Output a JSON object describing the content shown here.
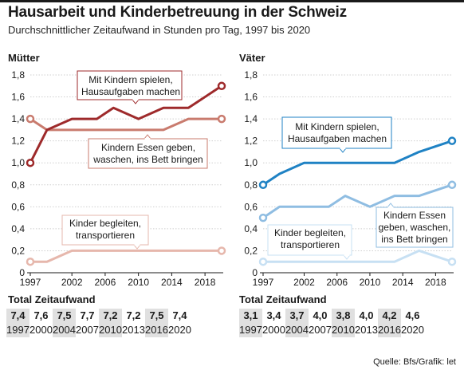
{
  "title": "Hausarbeit und Kinderbetreuung in der Schweiz",
  "subtitle": "Durchschnittlicher Zeitaufwand in Stunden pro Tag, 1997 bis 2020",
  "source": "Quelle: Bfs/Grafik: let",
  "totals_label": "Total Zeitaufwand",
  "colors": {
    "mothers_play": "#9e2a2b",
    "mothers_eat": "#c97b6e",
    "mothers_transport": "#e6b7ac",
    "fathers_play": "#1f82c4",
    "fathers_eat": "#8fbde2",
    "fathers_transport": "#c7e0f3"
  },
  "chart_data": [
    {
      "type": "line",
      "title": "Mütter",
      "x": [
        1997,
        1999,
        2002,
        2005,
        2007,
        2010,
        2013,
        2016,
        2020
      ],
      "x_ticks": [
        "1997",
        "2002",
        "2006",
        "2010",
        "2014",
        "2018"
      ],
      "y_ticks": [
        "0",
        "0,2",
        "0,4",
        "0,6",
        "0,8",
        "1,0",
        "1,2",
        "1,4",
        "1,6",
        "1,8"
      ],
      "ylim": [
        0,
        1.8
      ],
      "series": [
        {
          "name": "Mit Kindern spielen, Hausaufgaben machen",
          "values": [
            1.0,
            1.3,
            1.4,
            1.4,
            1.5,
            1.4,
            1.5,
            1.5,
            1.7
          ],
          "color": "#9e2a2b"
        },
        {
          "name": "Kindern Essen geben, waschen, ins Bett bringen",
          "values": [
            1.4,
            1.3,
            1.3,
            1.3,
            1.3,
            1.3,
            1.3,
            1.4,
            1.4
          ],
          "color": "#c97b6e"
        },
        {
          "name": "Kinder begleiten, transportieren",
          "values": [
            0.1,
            0.1,
            0.2,
            0.2,
            0.2,
            0.2,
            0.2,
            0.2,
            0.2
          ],
          "color": "#e6b7ac"
        }
      ],
      "annotations": [
        {
          "lines": [
            "Mit Kindern spielen,",
            "Hausaufgaben machen"
          ]
        },
        {
          "lines": [
            "Kindern Essen geben,",
            "waschen, ins Bett bringen"
          ]
        },
        {
          "lines": [
            "Kinder begleiten,",
            "transportieren"
          ]
        }
      ],
      "totals": [
        {
          "value": "7,4",
          "year": "1997",
          "shaded": true
        },
        {
          "value": "7,6",
          "year": "2000",
          "shaded": false
        },
        {
          "value": "7,5",
          "year": "2004",
          "shaded": true
        },
        {
          "value": "7,7",
          "year": "2007",
          "shaded": false
        },
        {
          "value": "7,2",
          "year": "2010",
          "shaded": true
        },
        {
          "value": "7,2",
          "year": "2013",
          "shaded": false
        },
        {
          "value": "7,5",
          "year": "2016",
          "shaded": true
        },
        {
          "value": "7,4",
          "year": "2020",
          "shaded": false
        }
      ]
    },
    {
      "type": "line",
      "title": "Väter",
      "x": [
        1997,
        1999,
        2002,
        2005,
        2007,
        2010,
        2013,
        2016,
        2020
      ],
      "x_ticks": [
        "1997",
        "2002",
        "2006",
        "2010",
        "2014",
        "2018"
      ],
      "y_ticks": [
        "0",
        "0,2",
        "0,4",
        "0,6",
        "0,8",
        "1,0",
        "1,2",
        "1,4",
        "1,6",
        "1,8"
      ],
      "ylim": [
        0,
        1.8
      ],
      "series": [
        {
          "name": "Mit Kindern spielen, Hausaufgaben machen",
          "values": [
            0.8,
            0.9,
            1.0,
            1.0,
            1.0,
            1.0,
            1.0,
            1.1,
            1.2
          ],
          "color": "#1f82c4"
        },
        {
          "name": "Kindern Essen geben, waschen, ins Bett bringen",
          "values": [
            0.5,
            0.6,
            0.6,
            0.6,
            0.7,
            0.6,
            0.7,
            0.7,
            0.8
          ],
          "color": "#8fbde2"
        },
        {
          "name": "Kinder begleiten, transportieren",
          "values": [
            0.1,
            0.1,
            0.1,
            0.1,
            0.1,
            0.1,
            0.1,
            0.2,
            0.1
          ],
          "color": "#c7e0f3"
        }
      ],
      "annotations": [
        {
          "lines": [
            "Mit Kindern spielen,",
            "Hausaufgaben machen"
          ]
        },
        {
          "lines": [
            "Kindern Essen",
            "geben, waschen,",
            "ins Bett bringen"
          ]
        },
        {
          "lines": [
            "Kinder begleiten,",
            "transportieren"
          ]
        }
      ],
      "totals": [
        {
          "value": "3,1",
          "year": "1997",
          "shaded": true
        },
        {
          "value": "3,4",
          "year": "2000",
          "shaded": false
        },
        {
          "value": "3,7",
          "year": "2004",
          "shaded": true
        },
        {
          "value": "4,0",
          "year": "2007",
          "shaded": false
        },
        {
          "value": "3,8",
          "year": "2010",
          "shaded": true
        },
        {
          "value": "4,0",
          "year": "2013",
          "shaded": false
        },
        {
          "value": "4,2",
          "year": "2016",
          "shaded": true
        },
        {
          "value": "4,6",
          "year": "2020",
          "shaded": false
        }
      ]
    }
  ]
}
